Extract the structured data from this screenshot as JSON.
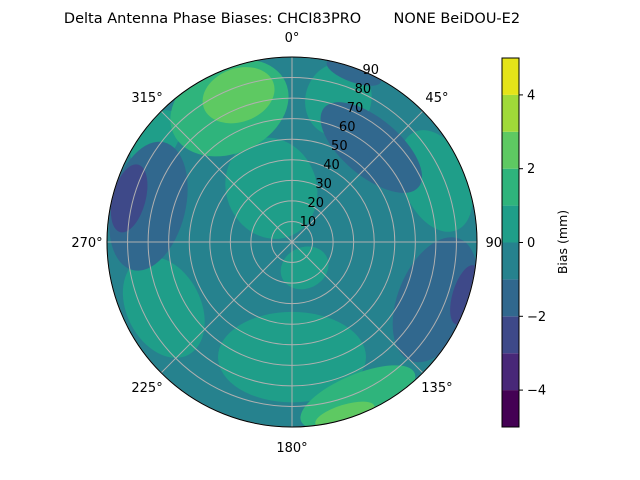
{
  "chart_data": {
    "type": "polar-contour",
    "title": "Delta Antenna Phase Biases: CHCI83PRO       NONE BeiDOU-E2",
    "colorbar": {
      "label": "Bias (mm)",
      "range": [
        -5,
        5
      ],
      "levels": [
        -5,
        -4,
        -3,
        -2,
        -1,
        0,
        1,
        2,
        3,
        4,
        5
      ],
      "ticks": [
        "−4",
        "−2",
        "0",
        "2",
        "4"
      ],
      "tick_values": [
        -4,
        -2,
        0,
        2,
        4
      ],
      "colors": [
        "#440154",
        "#482878",
        "#3e4989",
        "#31688e",
        "#26828e",
        "#1f9e89",
        "#2fb47c",
        "#5ec962",
        "#a0da39",
        "#e5e419"
      ]
    },
    "angular_ticks": [
      {
        "deg": 0,
        "label": "0°"
      },
      {
        "deg": 45,
        "label": "45°"
      },
      {
        "deg": 90,
        "label": "90°"
      },
      {
        "deg": 135,
        "label": "135°"
      },
      {
        "deg": 180,
        "label": "180°"
      },
      {
        "deg": 225,
        "label": "225°"
      },
      {
        "deg": 270,
        "label": "270°"
      },
      {
        "deg": 315,
        "label": "315°"
      }
    ],
    "radial_ticks": [
      "10",
      "20",
      "30",
      "40",
      "50",
      "60",
      "70",
      "80",
      "90"
    ],
    "radial_tick_values": [
      10,
      20,
      30,
      40,
      50,
      60,
      70,
      80,
      90
    ],
    "radial_max": 90,
    "grid": true,
    "background_level": -1,
    "regions": [
      {
        "az": 339,
        "r": 28,
        "radial": 25,
        "tangential": 22,
        "level": 0
      },
      {
        "az": 18,
        "r": 73,
        "radial": 18,
        "tangential": 16,
        "level": 0
      },
      {
        "az": 67,
        "r": 76,
        "radial": 16,
        "tangential": 26,
        "level": 0
      },
      {
        "az": 180,
        "r": 56,
        "radial": 22,
        "tangential": 36,
        "level": 0
      },
      {
        "az": 243,
        "r": 70,
        "radial": 18,
        "tangential": 26,
        "level": 0
      },
      {
        "az": 154,
        "r": 14,
        "radial": 10,
        "tangential": 12,
        "level": 0
      },
      {
        "az": 307,
        "r": 83,
        "radial": 10,
        "tangential": 16,
        "level": 0
      },
      {
        "az": 335,
        "r": 72,
        "radial": 22,
        "tangential": 30,
        "level": 1
      },
      {
        "az": 157,
        "r": 82,
        "radial": 11,
        "tangential": 30,
        "level": 1
      },
      {
        "az": 340,
        "r": 76,
        "radial": 13,
        "tangential": 18,
        "level": 2
      },
      {
        "az": 163,
        "r": 88,
        "radial": 5,
        "tangential": 15,
        "level": 2
      },
      {
        "az": 40,
        "r": 60,
        "radial": 14,
        "tangential": 30,
        "level": -2
      },
      {
        "az": 20,
        "r": 88,
        "radial": 5,
        "tangential": 14,
        "level": -2
      },
      {
        "az": 284,
        "r": 72,
        "radial": 18,
        "tangential": 32,
        "level": -2
      },
      {
        "az": 112,
        "r": 75,
        "radial": 18,
        "tangential": 32,
        "level": -2
      },
      {
        "az": 285,
        "r": 82,
        "radial": 8,
        "tangential": 17,
        "level": -3
      },
      {
        "az": 107,
        "r": 88,
        "radial": 6,
        "tangential": 15,
        "level": -3
      }
    ]
  }
}
